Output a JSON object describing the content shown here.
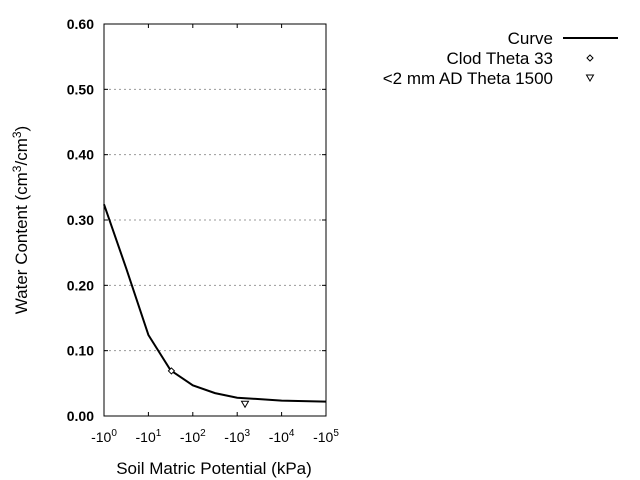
{
  "chart_data": {
    "type": "line",
    "title": "",
    "xlabel": "Soil Matric Potential (kPa)",
    "ylabel": {
      "base": "Water Content (cm",
      "sup1": "3",
      "mid": "/cm",
      "sup2": "3",
      "end": ")"
    },
    "x_scale": "log (negative)",
    "xlim": [
      -1,
      -100000
    ],
    "ylim": [
      0,
      0.6
    ],
    "x_ticks": [
      {
        "value": -1,
        "base": "-10",
        "exp": "0"
      },
      {
        "value": -10,
        "base": "-10",
        "exp": "1"
      },
      {
        "value": -100,
        "base": "-10",
        "exp": "2"
      },
      {
        "value": -1000,
        "base": "-10",
        "exp": "3"
      },
      {
        "value": -10000,
        "base": "-10",
        "exp": "4"
      },
      {
        "value": -100000,
        "base": "-10",
        "exp": "5"
      }
    ],
    "y_ticks": [
      "0.00",
      "0.10",
      "0.20",
      "0.30",
      "0.40",
      "0.50",
      "0.60"
    ],
    "grid": "horizontal dotted",
    "legend_position": "top-right, outside plot",
    "series": [
      {
        "name": "Curve",
        "style": "line",
        "color": "#000000",
        "x": [
          -1,
          -3.16,
          -10,
          -31.6,
          -100,
          -316,
          -1000,
          -10000,
          -100000
        ],
        "y": [
          0.324,
          0.226,
          0.124,
          0.07,
          0.047,
          0.035,
          0.028,
          0.0235,
          0.022
        ]
      },
      {
        "name": "Clod Theta 33",
        "style": "diamond",
        "x": [
          -33
        ],
        "y": [
          0.069
        ]
      },
      {
        "name": "<2 mm AD Theta 1500",
        "style": "triangle-down",
        "x": [
          -1500
        ],
        "y": [
          0.018
        ]
      }
    ]
  }
}
